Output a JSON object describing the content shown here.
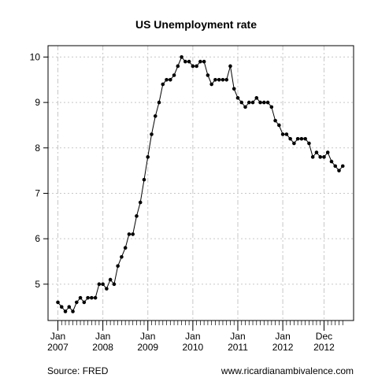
{
  "chart_data": {
    "type": "line",
    "title": "US Unemployment rate",
    "xlabel": "",
    "ylabel": "",
    "x_unit": "month",
    "x_start": "2007-01",
    "ylim": [
      4.2,
      10.25
    ],
    "yticks": [
      5,
      6,
      7,
      8,
      9,
      10
    ],
    "ytick_labels": [
      "5",
      "6",
      "7",
      "8",
      "9",
      "10"
    ],
    "xticks": [
      {
        "month": "2007-01",
        "top": "Jan",
        "bottom": "2007"
      },
      {
        "month": "2008-01",
        "top": "Jan",
        "bottom": "2008"
      },
      {
        "month": "2009-01",
        "top": "Jan",
        "bottom": "2009"
      },
      {
        "month": "2010-01",
        "top": "Jan",
        "bottom": "2010"
      },
      {
        "month": "2011-01",
        "top": "Jan",
        "bottom": "2011"
      },
      {
        "month": "2012-01",
        "top": "Jan",
        "bottom": "2012"
      },
      {
        "month": "2012-12",
        "top": "Dec",
        "bottom": "2012"
      }
    ],
    "grid": true,
    "series": [
      {
        "values": [
          4.6,
          4.5,
          4.4,
          4.5,
          4.4,
          4.6,
          4.7,
          4.6,
          4.7,
          4.7,
          4.7,
          5.0,
          5.0,
          4.9,
          5.1,
          5.0,
          5.4,
          5.6,
          5.8,
          6.1,
          6.1,
          6.5,
          6.8,
          7.3,
          7.8,
          8.3,
          8.7,
          9.0,
          9.4,
          9.5,
          9.5,
          9.6,
          9.8,
          10.0,
          9.9,
          9.9,
          9.8,
          9.8,
          9.9,
          9.9,
          9.6,
          9.4,
          9.5,
          9.5,
          9.5,
          9.5,
          9.8,
          9.3,
          9.1,
          9.0,
          8.9,
          9.0,
          9.0,
          9.1,
          9.0,
          9.0,
          9.0,
          8.9,
          8.6,
          8.5,
          8.3,
          8.3,
          8.2,
          8.1,
          8.2,
          8.2,
          8.2,
          8.1,
          7.8,
          7.9,
          7.8,
          7.8,
          7.9,
          7.7,
          7.6,
          7.5,
          7.6
        ]
      }
    ]
  },
  "footer": {
    "source": "Source: FRED",
    "website": "www.ricardianambivalence.com"
  },
  "colors": {
    "line": "#000000",
    "grid": "#c8c8c8",
    "axis": "#000000"
  }
}
